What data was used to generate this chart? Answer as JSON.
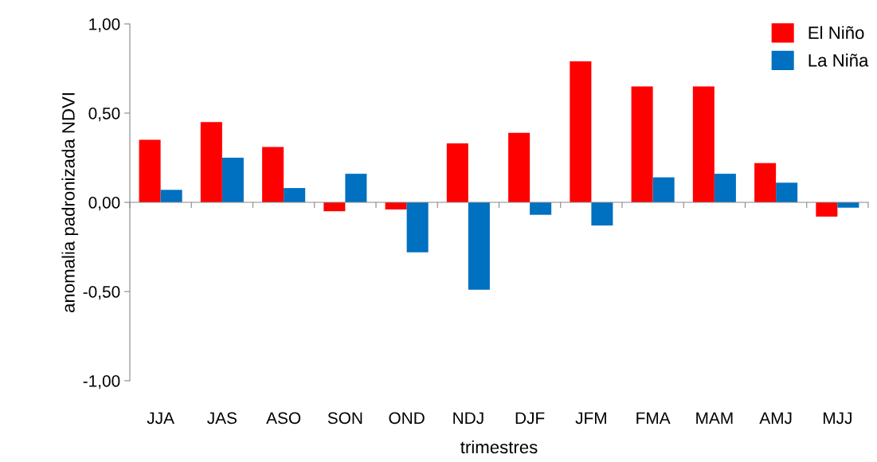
{
  "chart_data": {
    "type": "bar",
    "xlabel": "trimestres",
    "ylabel": "anomalia padronizada NDVI",
    "categories": [
      "JJA",
      "JAS",
      "ASO",
      "SON",
      "OND",
      "NDJ",
      "DJF",
      "JFM",
      "FMA",
      "MAM",
      "AMJ",
      "MJJ"
    ],
    "series": [
      {
        "name": "El Niño",
        "color": "#ff0000",
        "values": [
          0.35,
          0.45,
          0.31,
          -0.05,
          -0.04,
          0.33,
          0.39,
          0.79,
          0.65,
          0.65,
          0.22,
          -0.08
        ]
      },
      {
        "name": "La Niña",
        "color": "#0070c0",
        "values": [
          0.07,
          0.25,
          0.08,
          0.16,
          -0.28,
          -0.49,
          -0.07,
          -0.13,
          0.14,
          0.16,
          0.11,
          -0.03
        ]
      }
    ],
    "ylim": [
      -1,
      1
    ],
    "yticks": [
      {
        "value": -1,
        "label": "-1,00"
      },
      {
        "value": -0.5,
        "label": "-0,50"
      },
      {
        "value": 0,
        "label": "0,00"
      },
      {
        "value": 0.5,
        "label": "0,50"
      },
      {
        "value": 1,
        "label": "1,00"
      }
    ],
    "legend": "top right"
  }
}
